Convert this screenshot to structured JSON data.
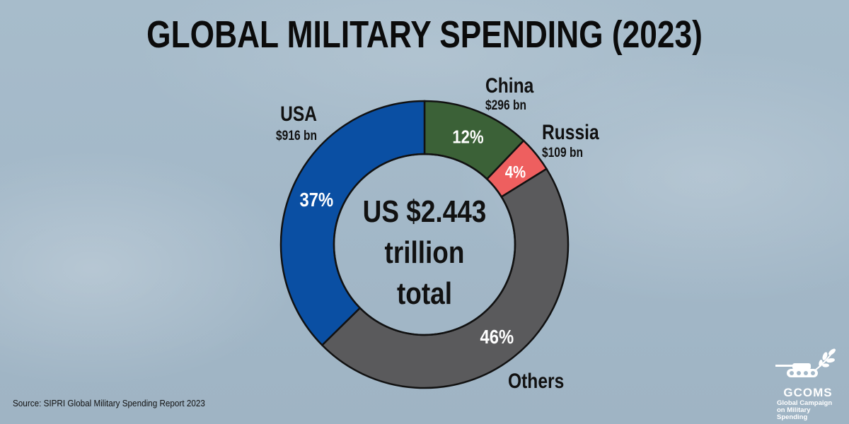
{
  "header": {
    "title": "GLOBAL MILITARY SPENDING (2023)"
  },
  "chart_data": {
    "type": "pie",
    "style": "donut",
    "title": "GLOBAL MILITARY SPENDING (2023)",
    "center": {
      "line1": "US $2.443",
      "line2": "trillion",
      "line3": "total"
    },
    "slices": [
      {
        "label": "China",
        "value": 12,
        "value_label": "12%",
        "amount": "$296 bn",
        "color": "#3b6137"
      },
      {
        "label": "Russia",
        "value": 4,
        "value_label": "4%",
        "amount": "$109 bn",
        "color": "#ee5f5f"
      },
      {
        "label": "Others",
        "value": 46,
        "value_label": "46%",
        "amount": "",
        "color": "#5a5a5c"
      },
      {
        "label": "USA",
        "value": 37,
        "value_label": "37%",
        "amount": "$916 bn",
        "color": "#0a4fa3"
      }
    ],
    "start": "12 o'clock",
    "direction": "clockwise",
    "legend": "none"
  },
  "footer": {
    "source": "Source: SIPRI Global Military Spending Report 2023",
    "logo_name": "GCOMS",
    "logo_tagline": "Global Campaign on Military Spending"
  }
}
